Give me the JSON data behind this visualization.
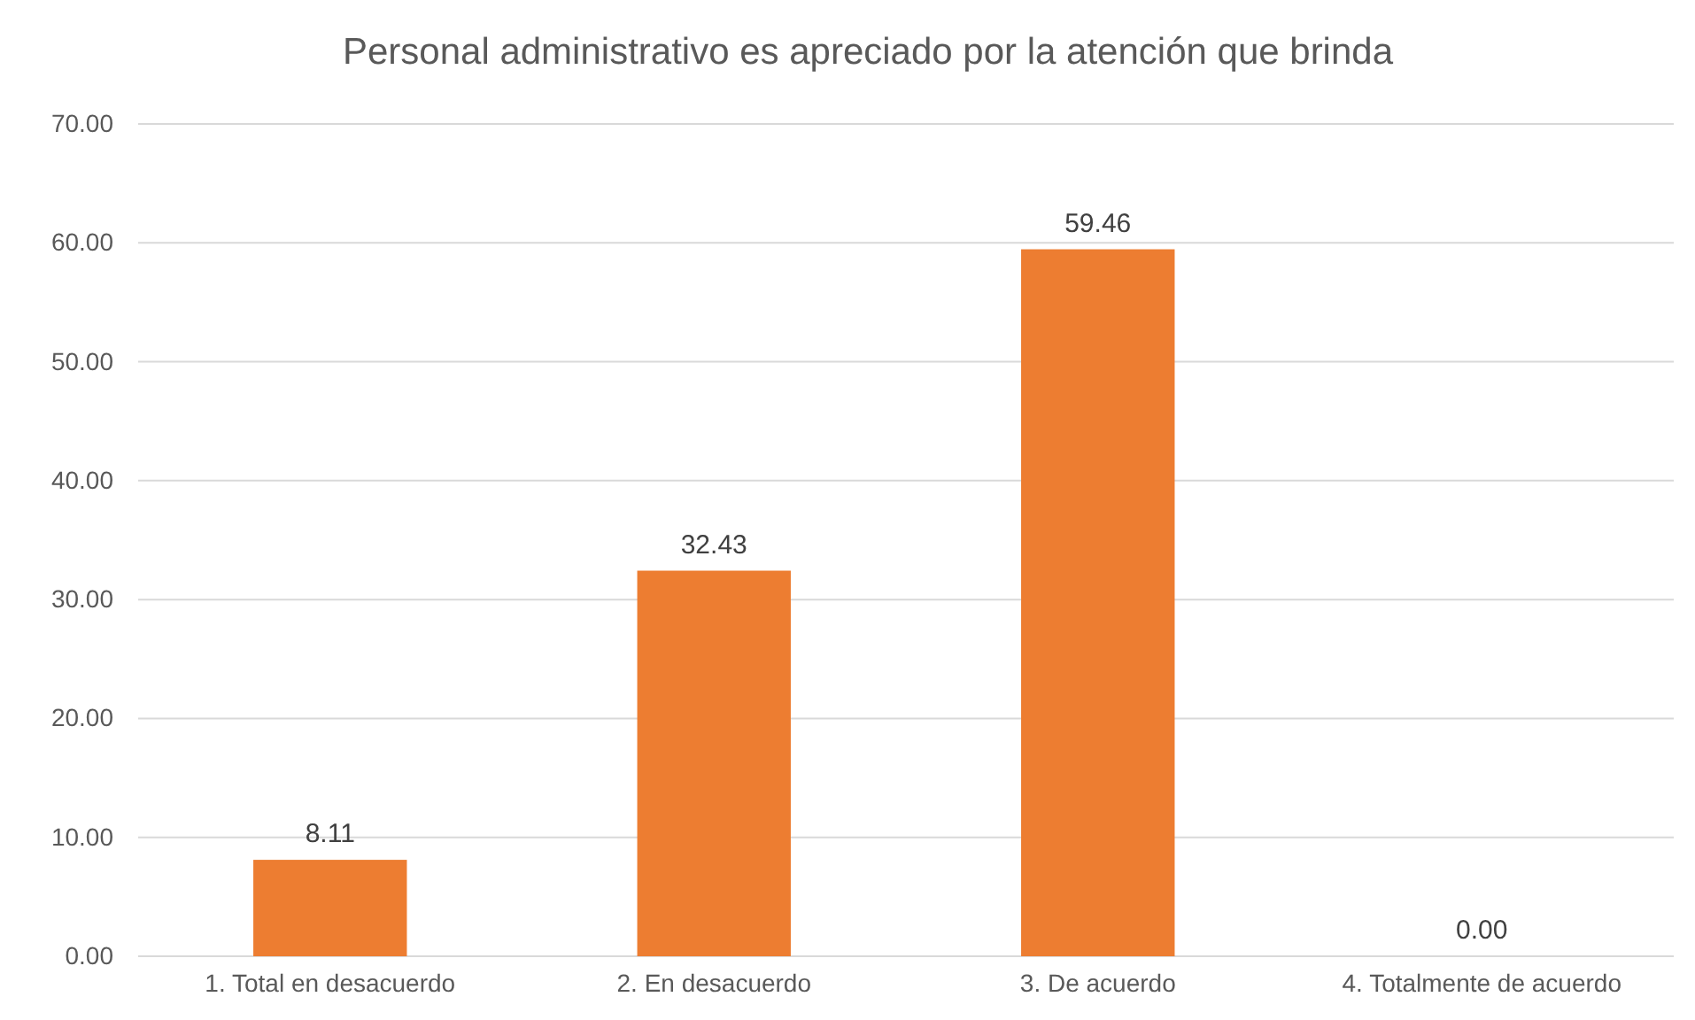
{
  "chart_data": {
    "type": "bar",
    "title": "Personal administrativo es apreciado por la atención que brinda",
    "categories": [
      "1. Total en desacuerdo",
      "2. En desacuerdo",
      "3. De acuerdo",
      "4. Totalmente de acuerdo"
    ],
    "values": [
      8.11,
      32.43,
      59.46,
      0
    ],
    "value_labels": [
      "8.11",
      "32.43",
      "59.46",
      "0.00"
    ],
    "color": "#ed7d31",
    "ylim": [
      0,
      70
    ],
    "yticks": [
      {
        "value": 0,
        "label": "0.00"
      },
      {
        "value": 10,
        "label": "10.00"
      },
      {
        "value": 20,
        "label": "20.00"
      },
      {
        "value": 30,
        "label": "30.00"
      },
      {
        "value": 40,
        "label": "40.00"
      },
      {
        "value": 50,
        "label": "50.00"
      },
      {
        "value": 60,
        "label": "60.00"
      },
      {
        "value": 70,
        "label": "70.00"
      }
    ],
    "grid": true
  }
}
